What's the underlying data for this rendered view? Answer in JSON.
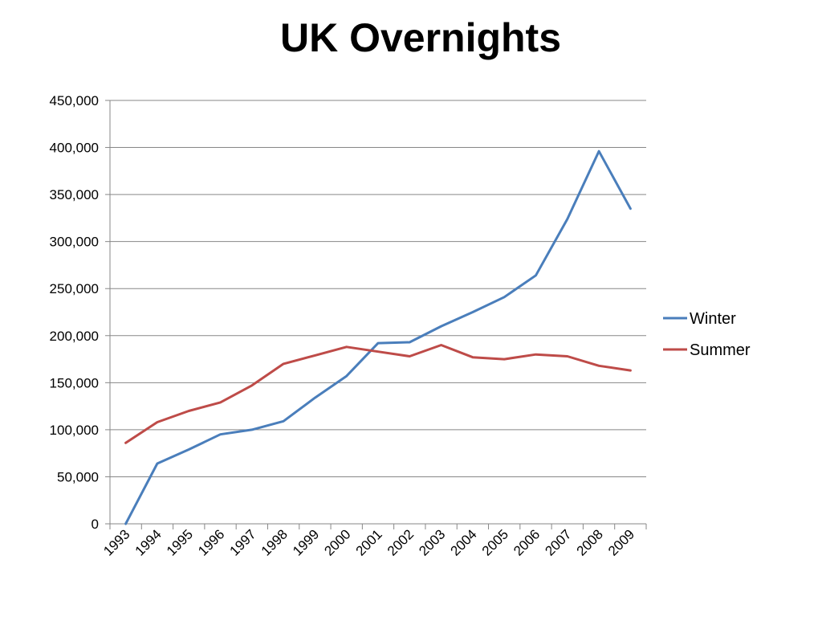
{
  "chart_data": {
    "type": "line",
    "title": "UK Overnights",
    "xlabel": "",
    "ylabel": "",
    "categories": [
      "1993",
      "1994",
      "1995",
      "1996",
      "1997",
      "1998",
      "1999",
      "2000",
      "2001",
      "2002",
      "2003",
      "2004",
      "2005",
      "2006",
      "2007",
      "2008",
      "2009"
    ],
    "ylim": [
      0,
      450000
    ],
    "yticks": [
      0,
      50000,
      100000,
      150000,
      200000,
      250000,
      300000,
      350000,
      400000,
      450000
    ],
    "ytick_labels": [
      "0",
      "50,000",
      "100,000",
      "150,000",
      "200,000",
      "250,000",
      "300,000",
      "350,000",
      "400,000",
      "450,000"
    ],
    "grid": true,
    "legend_position": "right",
    "series": [
      {
        "name": "Winter",
        "color": "#4a7ebb",
        "values": [
          0,
          64000,
          79000,
          95000,
          100000,
          109000,
          134000,
          157000,
          192000,
          193000,
          210000,
          225000,
          241000,
          264000,
          324000,
          396000,
          335000
        ]
      },
      {
        "name": "Summer",
        "color": "#be4b48",
        "values": [
          86000,
          108000,
          120000,
          129000,
          147000,
          170000,
          179000,
          188000,
          183000,
          178000,
          190000,
          177000,
          175000,
          180000,
          178000,
          168000,
          163000
        ]
      }
    ]
  }
}
